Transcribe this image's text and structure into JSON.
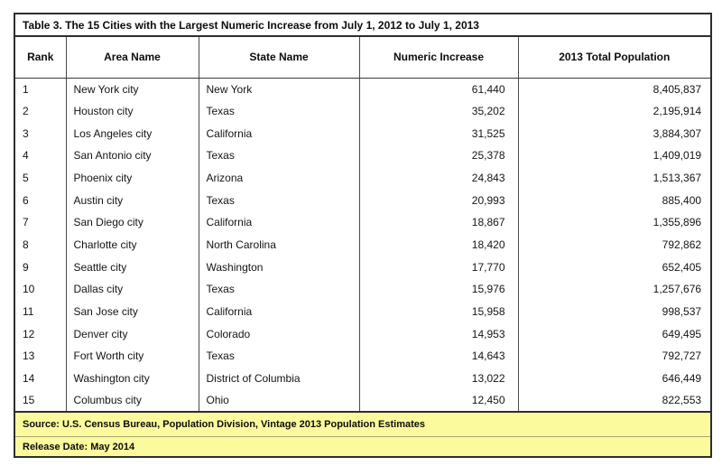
{
  "table": {
    "title": "Table 3. The 15 Cities with the Largest Numeric Increase from July 1, 2012 to July 1, 2013",
    "columns": [
      "Rank",
      "Area Name",
      "State Name",
      "Numeric Increase",
      "2013 Total Population"
    ],
    "rows": [
      {
        "rank": "1",
        "area": "New York city",
        "state": "New York",
        "increase": "61,440",
        "population": "8,405,837"
      },
      {
        "rank": "2",
        "area": "Houston city",
        "state": "Texas",
        "increase": "35,202",
        "population": "2,195,914"
      },
      {
        "rank": "3",
        "area": "Los Angeles city",
        "state": "California",
        "increase": "31,525",
        "population": "3,884,307"
      },
      {
        "rank": "4",
        "area": "San Antonio city",
        "state": "Texas",
        "increase": "25,378",
        "population": "1,409,019"
      },
      {
        "rank": "5",
        "area": "Phoenix city",
        "state": "Arizona",
        "increase": "24,843",
        "population": "1,513,367"
      },
      {
        "rank": "6",
        "area": "Austin city",
        "state": "Texas",
        "increase": "20,993",
        "population": "885,400"
      },
      {
        "rank": "7",
        "area": "San Diego city",
        "state": "California",
        "increase": "18,867",
        "population": "1,355,896"
      },
      {
        "rank": "8",
        "area": "Charlotte city",
        "state": "North Carolina",
        "increase": "18,420",
        "population": "792,862"
      },
      {
        "rank": "9",
        "area": "Seattle city",
        "state": "Washington",
        "increase": "17,770",
        "population": "652,405"
      },
      {
        "rank": "10",
        "area": "Dallas city",
        "state": "Texas",
        "increase": "15,976",
        "population": "1,257,676"
      },
      {
        "rank": "11",
        "area": "San Jose city",
        "state": "California",
        "increase": "15,958",
        "population": "998,537"
      },
      {
        "rank": "12",
        "area": "Denver city",
        "state": "Colorado",
        "increase": "14,953",
        "population": "649,495"
      },
      {
        "rank": "13",
        "area": "Fort Worth city",
        "state": "Texas",
        "increase": "14,643",
        "population": "792,727"
      },
      {
        "rank": "14",
        "area": "Washington city",
        "state": "District of Columbia",
        "increase": "13,022",
        "population": "646,449"
      },
      {
        "rank": "15",
        "area": "Columbus city",
        "state": "Ohio",
        "increase": "12,450",
        "population": "822,553"
      }
    ],
    "footer": {
      "source": "Source: U.S. Census Bureau, Population Division, Vintage 2013 Population Estimates",
      "release": "Release Date: May 2014"
    },
    "colors": {
      "footer_background": "#fbfb9e",
      "border": "#2e2e2e",
      "text": "#141414"
    }
  }
}
